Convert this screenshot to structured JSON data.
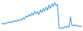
{
  "chart_data": {
    "type": "line",
    "color": "#4a9fd8",
    "tick_labels": false,
    "grid": false,
    "values": [
      34,
      36,
      33,
      38,
      36,
      40,
      37,
      42,
      39,
      44,
      41,
      46,
      43,
      48,
      45,
      52,
      49,
      58,
      54,
      62,
      57,
      66,
      60,
      72,
      64,
      70,
      62,
      76,
      68,
      80,
      72,
      84,
      75,
      90,
      80,
      94,
      86,
      98,
      88,
      92,
      22,
      20,
      24,
      21,
      26,
      23,
      28,
      25,
      55,
      30,
      28,
      32,
      27,
      30,
      26,
      28,
      24
    ],
    "ylim": [
      18,
      98
    ]
  }
}
